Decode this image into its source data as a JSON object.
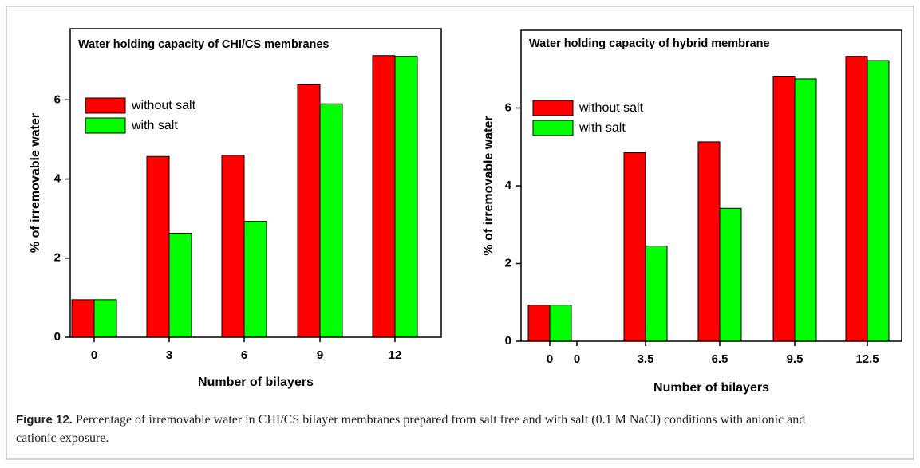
{
  "chart_data": [
    {
      "type": "bar",
      "title": "Water holding capacity of CHI/CS membranes",
      "x_label": "Number of bilayers",
      "y_label": "% of irremovable water",
      "categories": [
        "0",
        "3",
        "6",
        "9",
        "12"
      ],
      "series": [
        {
          "name": "without salt",
          "color": "#ff0000",
          "values": [
            0.95,
            4.57,
            4.6,
            6.4,
            7.12
          ]
        },
        {
          "name": "with salt",
          "color": "#00ff00",
          "values": [
            0.95,
            2.63,
            2.93,
            5.9,
            7.1
          ]
        }
      ],
      "ylim": [
        0,
        7.8
      ],
      "yticks": [
        0,
        2,
        4,
        6
      ],
      "legend": "upper left"
    },
    {
      "type": "bar",
      "title": "Water holding capacity of hybrid membrane",
      "x_label": "Number of bilayers",
      "y_label": "% of irremovable water",
      "categories": [
        "0",
        "0",
        "3.5",
        "6.5",
        "9.5",
        "12.5"
      ],
      "series": [
        {
          "name": "without salt",
          "color": "#ff0000",
          "values": [
            0.93,
            null,
            4.85,
            5.13,
            6.82,
            7.33
          ]
        },
        {
          "name": "with salt",
          "color": "#00ff00",
          "values": [
            0.93,
            null,
            2.45,
            3.42,
            6.75,
            7.22
          ]
        }
      ],
      "ylim": [
        0,
        8
      ],
      "yticks": [
        0,
        2,
        4,
        6
      ],
      "legend": "upper left"
    }
  ],
  "caption": {
    "label": "Figure 12.",
    "text": "Percentage of irremovable water in CHI/CS bilayer membranes prepared from salt free and with salt (0.1 M NaCl) conditions with anionic and cationic exposure."
  }
}
